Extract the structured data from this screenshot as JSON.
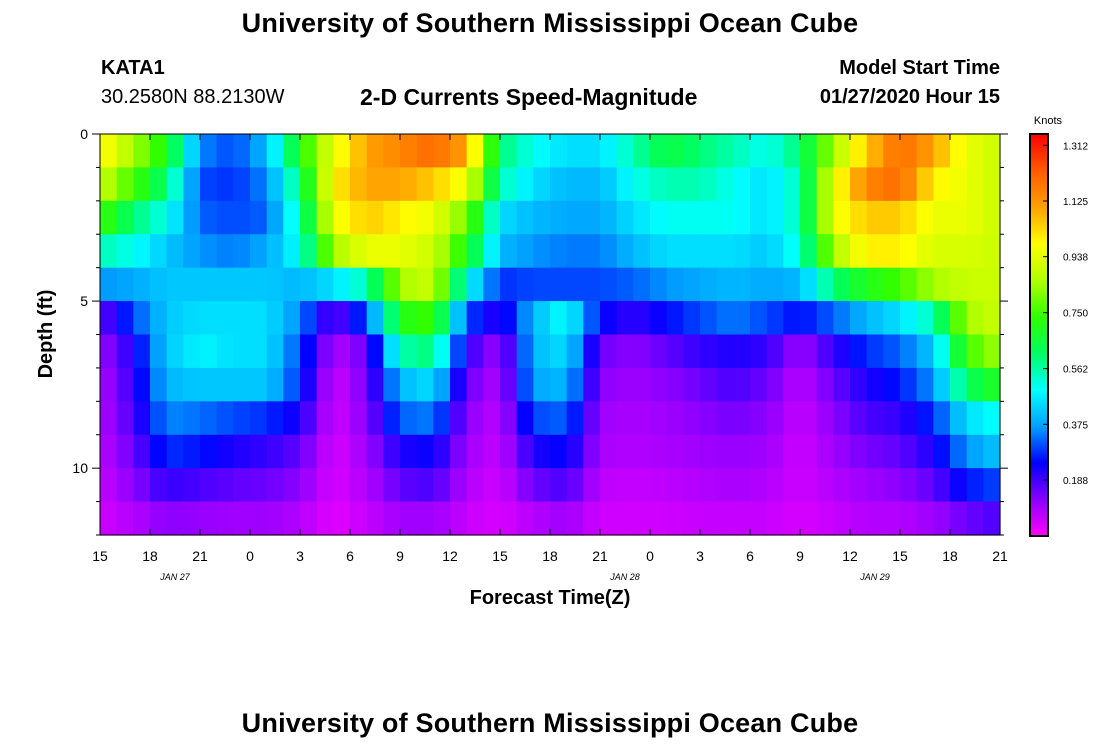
{
  "header": {
    "title": "University of Southern Mississippi Ocean Cube",
    "station": "KATA1",
    "coordinates": "30.2580N 88.2130W",
    "model_start_label": "Model Start Time",
    "model_start_value": "01/27/2020 Hour 15"
  },
  "footer": {
    "title": "University of Southern Mississippi Ocean Cube"
  },
  "chart_data": {
    "type": "heatmap",
    "title": "2-D Currents Speed-Magnitude",
    "xlabel": "Forecast Time(Z)",
    "ylabel": "Depth (ft)",
    "x_tick_labels": [
      "15",
      "18",
      "21",
      "0",
      "3",
      "6",
      "9",
      "12",
      "15",
      "18",
      "21",
      "0",
      "3",
      "6",
      "9",
      "12",
      "15",
      "18",
      "21"
    ],
    "date_labels": [
      {
        "label": "JAN  27",
        "at_tick": 1.5
      },
      {
        "label": "JAN  28",
        "at_tick": 10.5
      },
      {
        "label": "JAN  29",
        "at_tick": 15.5
      }
    ],
    "y_tick_labels": [
      "0",
      "5",
      "10"
    ],
    "ylim": [
      0,
      12
    ],
    "xlim_hours": [
      0,
      54
    ],
    "colorbar": {
      "title": "Knots",
      "tick_labels": [
        "1.312",
        "1.125",
        "0.938",
        "0.750",
        "0.562",
        "0.375",
        "0.188"
      ],
      "tick_values": [
        1.312,
        1.125,
        0.938,
        0.75,
        0.562,
        0.375,
        0.188
      ],
      "range": [
        0,
        1.35
      ]
    },
    "colors": {
      "scale": [
        "#ff00ff",
        "#8a00ff",
        "#0000ff",
        "#00a0ff",
        "#00ffff",
        "#00ff60",
        "#30ff00",
        "#b0ff00",
        "#ffff00",
        "#ffa000",
        "#ff5a00",
        "#ff0000"
      ]
    },
    "depth_levels_ft": [
      0.5,
      1.5,
      2.5,
      3.5,
      4.5,
      5.5,
      6.5,
      7.5,
      8.5,
      9.5,
      10.5,
      11.5
    ],
    "time_keys_hours": [
      0,
      2,
      4,
      6,
      8,
      10,
      12,
      14,
      16,
      18,
      20,
      22,
      24,
      26,
      28,
      30,
      32,
      34,
      36,
      38,
      40,
      42,
      44,
      46,
      48,
      50,
      52,
      54
    ],
    "speed_grid_knots": [
      [
        1.0,
        0.85,
        0.7,
        0.35,
        0.3,
        0.4,
        0.7,
        0.95,
        1.1,
        1.15,
        1.2,
        1.1,
        0.6,
        0.5,
        0.45,
        0.45,
        0.55,
        0.65,
        0.6,
        0.55,
        0.5,
        0.6,
        0.85,
        1.05,
        1.2,
        1.1,
        0.95,
        0.9
      ],
      [
        0.9,
        0.75,
        0.6,
        0.3,
        0.28,
        0.35,
        0.6,
        1.0,
        1.1,
        1.1,
        1.05,
        0.95,
        0.55,
        0.45,
        0.4,
        0.4,
        0.5,
        0.55,
        0.55,
        0.5,
        0.45,
        0.55,
        0.95,
        1.15,
        1.2,
        1.0,
        0.95,
        0.9
      ],
      [
        0.75,
        0.6,
        0.5,
        0.32,
        0.3,
        0.32,
        0.55,
        0.95,
        1.05,
        1.0,
        0.95,
        0.8,
        0.45,
        0.4,
        0.38,
        0.38,
        0.45,
        0.5,
        0.5,
        0.5,
        0.45,
        0.55,
        0.95,
        1.05,
        1.05,
        0.95,
        0.95,
        0.9
      ],
      [
        0.55,
        0.5,
        0.42,
        0.36,
        0.34,
        0.38,
        0.5,
        0.85,
        0.95,
        0.95,
        0.9,
        0.7,
        0.4,
        0.36,
        0.34,
        0.34,
        0.4,
        0.45,
        0.45,
        0.45,
        0.42,
        0.52,
        0.85,
        1.0,
        1.0,
        0.92,
        0.92,
        0.9
      ],
      [
        0.36,
        0.38,
        0.42,
        0.42,
        0.42,
        0.42,
        0.4,
        0.45,
        0.55,
        0.85,
        0.9,
        0.5,
        0.28,
        0.3,
        0.3,
        0.3,
        0.32,
        0.36,
        0.38,
        0.4,
        0.38,
        0.4,
        0.6,
        0.7,
        0.75,
        0.85,
        0.9,
        0.9
      ],
      [
        0.15,
        0.3,
        0.42,
        0.45,
        0.45,
        0.45,
        0.35,
        0.15,
        0.3,
        0.7,
        0.75,
        0.3,
        0.2,
        0.4,
        0.5,
        0.25,
        0.2,
        0.25,
        0.3,
        0.34,
        0.3,
        0.25,
        0.32,
        0.4,
        0.45,
        0.55,
        0.85,
        0.9
      ],
      [
        0.1,
        0.22,
        0.42,
        0.48,
        0.45,
        0.45,
        0.3,
        0.08,
        0.15,
        0.55,
        0.6,
        0.2,
        0.1,
        0.4,
        0.45,
        0.15,
        0.12,
        0.16,
        0.2,
        0.22,
        0.2,
        0.1,
        0.2,
        0.28,
        0.32,
        0.42,
        0.75,
        0.85
      ],
      [
        0.08,
        0.2,
        0.4,
        0.42,
        0.42,
        0.42,
        0.28,
        0.05,
        0.14,
        0.4,
        0.45,
        0.15,
        0.08,
        0.38,
        0.4,
        0.12,
        0.1,
        0.12,
        0.15,
        0.18,
        0.15,
        0.07,
        0.15,
        0.22,
        0.26,
        0.36,
        0.62,
        0.7
      ],
      [
        0.08,
        0.18,
        0.35,
        0.33,
        0.3,
        0.28,
        0.22,
        0.05,
        0.12,
        0.32,
        0.34,
        0.12,
        0.07,
        0.3,
        0.32,
        0.1,
        0.09,
        0.1,
        0.12,
        0.14,
        0.12,
        0.06,
        0.12,
        0.18,
        0.2,
        0.28,
        0.45,
        0.5
      ],
      [
        0.07,
        0.15,
        0.28,
        0.26,
        0.22,
        0.2,
        0.16,
        0.04,
        0.1,
        0.22,
        0.24,
        0.1,
        0.06,
        0.22,
        0.25,
        0.09,
        0.08,
        0.09,
        0.1,
        0.11,
        0.1,
        0.05,
        0.1,
        0.14,
        0.16,
        0.22,
        0.36,
        0.42
      ],
      [
        0.06,
        0.12,
        0.2,
        0.18,
        0.16,
        0.15,
        0.12,
        0.04,
        0.08,
        0.16,
        0.18,
        0.08,
        0.05,
        0.15,
        0.18,
        0.07,
        0.06,
        0.07,
        0.08,
        0.09,
        0.08,
        0.05,
        0.08,
        0.1,
        0.12,
        0.16,
        0.26,
        0.3
      ],
      [
        0.05,
        0.08,
        0.12,
        0.11,
        0.1,
        0.1,
        0.08,
        0.03,
        0.06,
        0.1,
        0.1,
        0.06,
        0.04,
        0.08,
        0.1,
        0.05,
        0.05,
        0.05,
        0.06,
        0.06,
        0.06,
        0.04,
        0.06,
        0.08,
        0.08,
        0.1,
        0.15,
        0.18
      ]
    ]
  }
}
